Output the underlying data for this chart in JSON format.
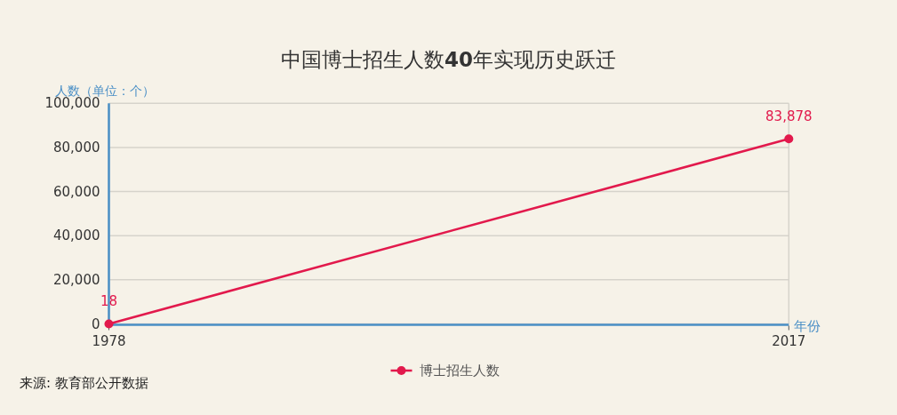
{
  "chart_data": {
    "type": "line",
    "title": "中国博士招生人数**40**年实现历史跃迁",
    "xlabel": "年份",
    "ylabel": "人数（单位：个）",
    "x": [
      1978,
      2017
    ],
    "xlim": [
      1978,
      2017
    ],
    "xticks": [
      1978,
      2017
    ],
    "ylim": [
      0,
      100000
    ],
    "yticks": [
      0,
      {
        "value": 20000,
        "label": "20,000"
      },
      {
        "value": 40000,
        "label": "40,000"
      },
      {
        "value": 60000,
        "label": "60,000"
      },
      {
        "value": 80000,
        "label": "80,000"
      },
      {
        "value": 100000,
        "label": "100,000"
      }
    ],
    "series": [
      {
        "name": "博士招生人数",
        "color": "#e2194c",
        "values": [
          18,
          83878
        ],
        "value_labels": [
          "18",
          "83,878"
        ]
      }
    ],
    "grid": true,
    "legend": "bottom",
    "marker": "circle",
    "line_style": "solid",
    "annotations": [
      "来源: 教育部公开数据"
    ]
  }
}
